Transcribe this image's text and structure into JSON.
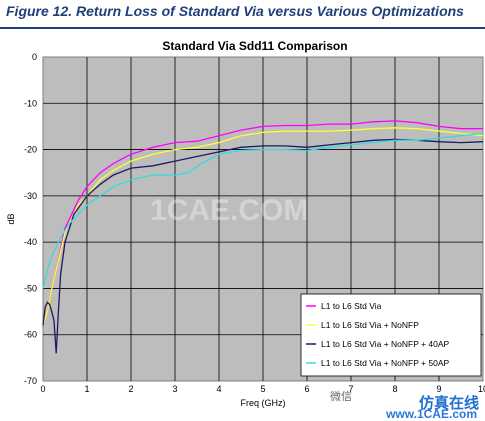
{
  "caption": "Figure 12. Return Loss of Standard Via versus Various Optimizations",
  "watermark_center": "1CAE.COM",
  "watermark_corner": "仿真在线",
  "watermark_url": "www.1CAE.com",
  "watermark_wechat": "微信",
  "chart_data": {
    "type": "line",
    "title": "Standard Via Sdd11 Comparison",
    "xlabel": "Freq (GHz)",
    "ylabel": "dB",
    "xlim": [
      0,
      10
    ],
    "ylim": [
      -70,
      0
    ],
    "xticks": [
      "0",
      "1",
      "2",
      "3",
      "4",
      "5",
      "6",
      "7",
      "8",
      "9",
      "10"
    ],
    "yticks": [
      "0",
      "-10",
      "-20",
      "-30",
      "-40",
      "-50",
      "-60",
      "-70"
    ],
    "grid": true,
    "legend_position": "bottom-right",
    "series": [
      {
        "name": "L1 to L6 Std Via",
        "color": "#ff00ff",
        "points": [
          [
            0,
            -58
          ],
          [
            0.1,
            -55
          ],
          [
            0.2,
            -50
          ],
          [
            0.3,
            -46
          ],
          [
            0.5,
            -37
          ],
          [
            0.8,
            -31
          ],
          [
            1,
            -28
          ],
          [
            1.3,
            -25
          ],
          [
            1.6,
            -23
          ],
          [
            2,
            -21
          ],
          [
            2.5,
            -19.5
          ],
          [
            3,
            -18.5
          ],
          [
            3.5,
            -18.2
          ],
          [
            4,
            -17
          ],
          [
            4.5,
            -15.8
          ],
          [
            5,
            -15
          ],
          [
            5.5,
            -14.8
          ],
          [
            6,
            -14.8
          ],
          [
            6.5,
            -14.5
          ],
          [
            7,
            -14.5
          ],
          [
            7.5,
            -14
          ],
          [
            8,
            -13.8
          ],
          [
            8.5,
            -14.2
          ],
          [
            9,
            -15
          ],
          [
            9.5,
            -15.5
          ],
          [
            10,
            -15.5
          ]
        ]
      },
      {
        "name": "L1 to L6 Std Via + NoNFP",
        "color": "#ffff33",
        "points": [
          [
            0,
            -58
          ],
          [
            0.1,
            -55
          ],
          [
            0.2,
            -50
          ],
          [
            0.3,
            -46
          ],
          [
            0.5,
            -38
          ],
          [
            0.8,
            -32
          ],
          [
            1,
            -30
          ],
          [
            1.3,
            -26.5
          ],
          [
            1.6,
            -24.5
          ],
          [
            2,
            -22.5
          ],
          [
            2.5,
            -21
          ],
          [
            3,
            -20
          ],
          [
            3.5,
            -19.5
          ],
          [
            4,
            -18.5
          ],
          [
            4.5,
            -17
          ],
          [
            5,
            -16.3
          ],
          [
            5.5,
            -16
          ],
          [
            6,
            -16
          ],
          [
            6.5,
            -16
          ],
          [
            7,
            -15.8
          ],
          [
            7.5,
            -15.5
          ],
          [
            8,
            -15.3
          ],
          [
            8.5,
            -15.5
          ],
          [
            9,
            -16
          ],
          [
            9.5,
            -16.5
          ],
          [
            10,
            -17
          ]
        ]
      },
      {
        "name": "L1 to L6 Std Via + NoNFP + 40AP",
        "color": "#1a1a66",
        "points": [
          [
            0,
            -58
          ],
          [
            0.05,
            -54
          ],
          [
            0.1,
            -53
          ],
          [
            0.15,
            -53.5
          ],
          [
            0.2,
            -55
          ],
          [
            0.25,
            -57
          ],
          [
            0.3,
            -64
          ],
          [
            0.35,
            -55
          ],
          [
            0.4,
            -47
          ],
          [
            0.5,
            -40
          ],
          [
            0.7,
            -34
          ],
          [
            1,
            -30
          ],
          [
            1.3,
            -27.5
          ],
          [
            1.6,
            -25.5
          ],
          [
            2,
            -24
          ],
          [
            2.5,
            -23.5
          ],
          [
            3,
            -22.5
          ],
          [
            3.5,
            -21.5
          ],
          [
            4,
            -20.5
          ],
          [
            4.5,
            -19.5
          ],
          [
            5,
            -19.2
          ],
          [
            5.5,
            -19.2
          ],
          [
            6,
            -19.5
          ],
          [
            6.5,
            -19
          ],
          [
            7,
            -18.5
          ],
          [
            7.5,
            -18
          ],
          [
            8,
            -17.8
          ],
          [
            8.5,
            -18
          ],
          [
            9,
            -18.3
          ],
          [
            9.5,
            -18.5
          ],
          [
            10,
            -18.3
          ]
        ]
      },
      {
        "name": "L1 to L6 Std Via + NoNFP + 50AP",
        "color": "#33dddd",
        "points": [
          [
            0,
            -50
          ],
          [
            0.1,
            -46
          ],
          [
            0.2,
            -43
          ],
          [
            0.4,
            -39
          ],
          [
            0.6,
            -36
          ],
          [
            0.8,
            -34
          ],
          [
            1,
            -32
          ],
          [
            1.3,
            -30
          ],
          [
            1.6,
            -28
          ],
          [
            2,
            -26.5
          ],
          [
            2.5,
            -25.5
          ],
          [
            3,
            -25.5
          ],
          [
            3.3,
            -25
          ],
          [
            3.6,
            -23
          ],
          [
            4,
            -21
          ],
          [
            4.5,
            -20.2
          ],
          [
            5,
            -20
          ],
          [
            5.5,
            -20
          ],
          [
            6,
            -20.2
          ],
          [
            6.5,
            -19.5
          ],
          [
            7,
            -19
          ],
          [
            7.5,
            -18.5
          ],
          [
            8,
            -18
          ],
          [
            8.5,
            -18
          ],
          [
            9,
            -17.5
          ],
          [
            9.5,
            -17
          ],
          [
            10,
            -16.5
          ]
        ]
      }
    ]
  }
}
